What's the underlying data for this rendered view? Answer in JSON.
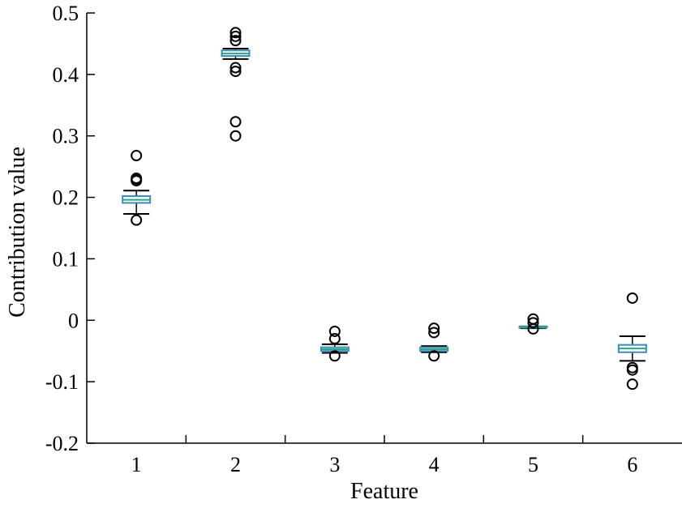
{
  "chart_data": {
    "type": "box",
    "xlabel": "Feature",
    "ylabel": "Contribution value",
    "ylim": [
      -0.2,
      0.5
    ],
    "yticks": [
      "-0.2",
      "-0.1",
      "0",
      "0.1",
      "0.2",
      "0.3",
      "0.4",
      "0.5"
    ],
    "categories": [
      "1",
      "2",
      "3",
      "4",
      "5",
      "6"
    ],
    "grid": false,
    "colors": {
      "box": "#3b8ab8",
      "median": "#2aa58a",
      "whisker": "#000000",
      "outlier": "#000000"
    },
    "boxes": [
      {
        "category": "1",
        "q1": 0.191,
        "median": 0.196,
        "q3": 0.202,
        "whisker_low": 0.173,
        "whisker_high": 0.211,
        "outliers": [
          0.268,
          0.231,
          0.229,
          0.227,
          0.163
        ]
      },
      {
        "category": "2",
        "q1": 0.43,
        "median": 0.434,
        "q3": 0.439,
        "whisker_low": 0.425,
        "whisker_high": 0.442,
        "outliers": [
          0.468,
          0.462,
          0.455,
          0.411,
          0.405,
          0.323,
          0.3
        ]
      },
      {
        "category": "3",
        "q1": -0.05,
        "median": -0.047,
        "q3": -0.044,
        "whisker_low": -0.053,
        "whisker_high": -0.039,
        "outliers": [
          -0.018,
          -0.03,
          -0.058
        ]
      },
      {
        "category": "4",
        "q1": -0.05,
        "median": -0.047,
        "q3": -0.044,
        "whisker_low": -0.052,
        "whisker_high": -0.042,
        "outliers": [
          -0.013,
          -0.02,
          -0.058
        ]
      },
      {
        "category": "5",
        "q1": -0.012,
        "median": -0.011,
        "q3": -0.01,
        "whisker_low": -0.013,
        "whisker_high": -0.01,
        "outliers": [
          0.002,
          -0.004,
          -0.014
        ]
      },
      {
        "category": "6",
        "q1": -0.052,
        "median": -0.046,
        "q3": -0.04,
        "whisker_low": -0.066,
        "whisker_high": -0.026,
        "outliers": [
          0.036,
          -0.077,
          -0.081,
          -0.104
        ]
      }
    ]
  }
}
